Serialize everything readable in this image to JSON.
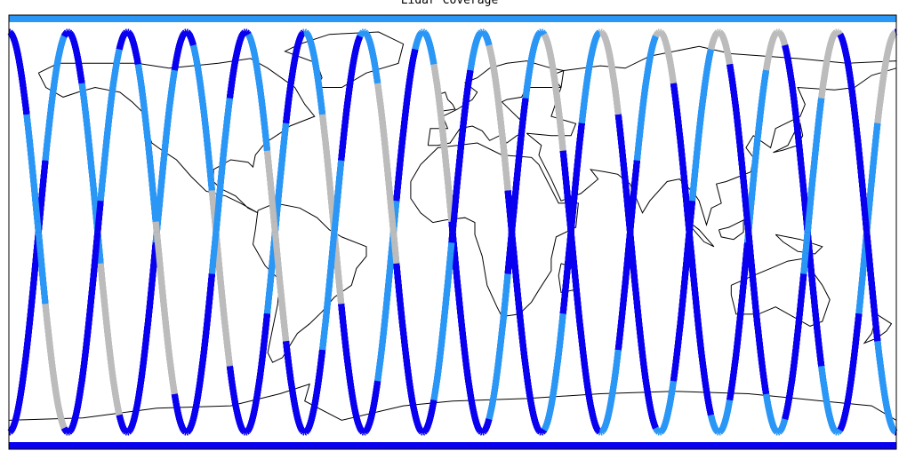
{
  "title": "Lidar Coverage",
  "colors": {
    "dark_blue": "#0a00f0",
    "light_blue": "#2a96f5",
    "gray": "#bcbcbc",
    "coastline": "#000000",
    "frame": "#000000",
    "background": "#ffffff"
  },
  "map": {
    "projection": "equirectangular",
    "lon_range": [
      -180,
      180
    ],
    "lat_range": [
      -90,
      90
    ]
  },
  "tracks": {
    "type": "satellite ground tracks",
    "orbit_count": 15,
    "inclination_deg": 92,
    "color_cycle": [
      "dark_blue",
      "light_blue",
      "gray",
      "dark_blue",
      "dark_blue",
      "light_blue"
    ]
  }
}
